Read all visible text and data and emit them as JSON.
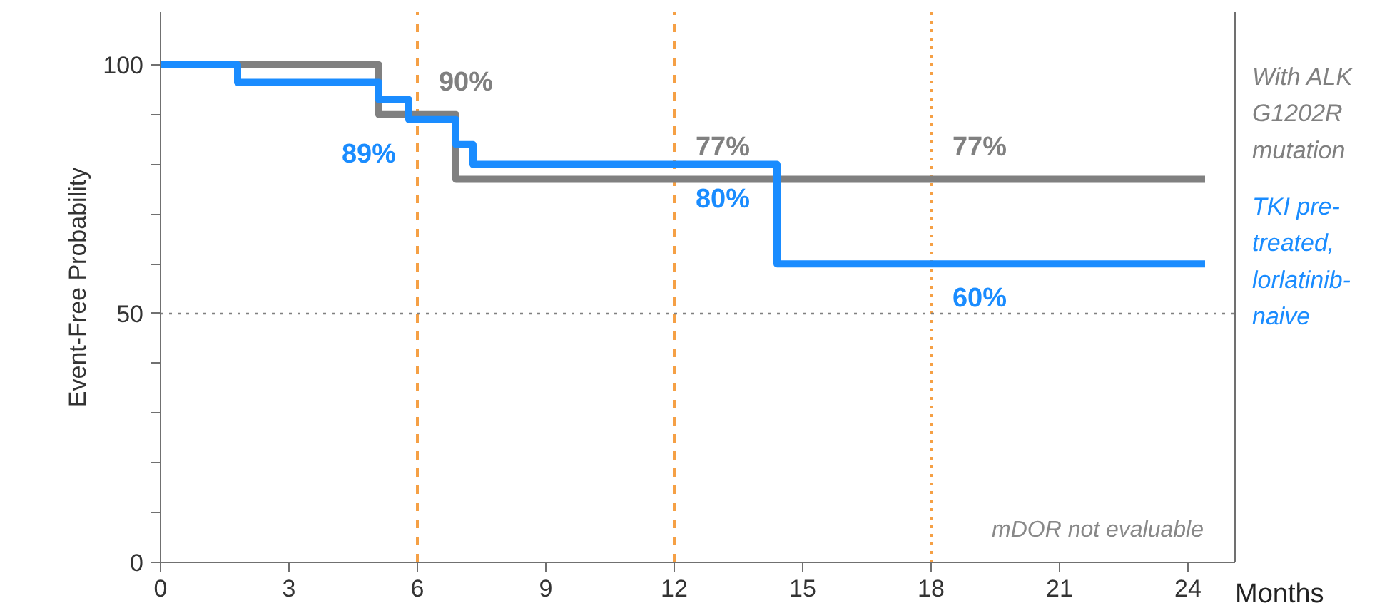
{
  "chart_data": {
    "type": "step",
    "xlabel": "Months",
    "ylabel": "Event-Free Probability",
    "xlim": [
      0,
      25.1
    ],
    "ylim": [
      0,
      110.6
    ],
    "xticks": [
      0,
      3,
      6,
      9,
      12,
      15,
      18,
      21,
      24
    ],
    "yticks": [
      0,
      {
        "value": 10,
        "label": null
      },
      {
        "value": 20,
        "label": null
      },
      {
        "value": 30,
        "label": null
      },
      {
        "value": 40,
        "label": null
      },
      50,
      {
        "value": 60,
        "label": null
      },
      {
        "value": 70,
        "label": null
      },
      {
        "value": 80,
        "label": null
      },
      {
        "value": 90,
        "label": null
      },
      100
    ],
    "series": [
      {
        "name": "With ALK G1202R mutation",
        "color": "#808080",
        "x": [
          0,
          5.1,
          6.9,
          24.4
        ],
        "values": [
          100,
          90,
          77,
          77
        ]
      },
      {
        "name": "TKI pre-treated, lorlatinib-naive",
        "color": "#1a8cff",
        "x": [
          0,
          1.8,
          5.1,
          5.8,
          6.9,
          7.3,
          14.4,
          24.4
        ],
        "values": [
          100,
          96.5,
          93,
          89,
          84,
          80,
          60,
          60
        ]
      }
    ],
    "ref_lines": [
      {
        "axis": "x",
        "value": 6,
        "color": "#f5a045",
        "line_style": "dashed"
      },
      {
        "axis": "x",
        "value": 12,
        "color": "#f5a045",
        "line_style": "dashed"
      },
      {
        "axis": "x",
        "value": 18,
        "color": "#f5a045",
        "line_style": "dotted"
      },
      {
        "axis": "y",
        "value": 50,
        "color": "#808080",
        "line_style": "dotted"
      }
    ],
    "annotations": [
      {
        "text": "90%",
        "x": 6,
        "y": 90
      },
      {
        "text": "89%",
        "x": 6,
        "y": 89
      },
      {
        "text": "77%",
        "x": 12,
        "y": 77
      },
      {
        "text": "80%",
        "x": 12,
        "y": 80
      },
      {
        "text": "77%",
        "x": 18,
        "y": 77
      },
      {
        "text": "60%",
        "x": 18,
        "y": 60
      },
      "mDOR not evaluable"
    ],
    "grid": false,
    "marker": "none",
    "line_style": "solid"
  }
}
